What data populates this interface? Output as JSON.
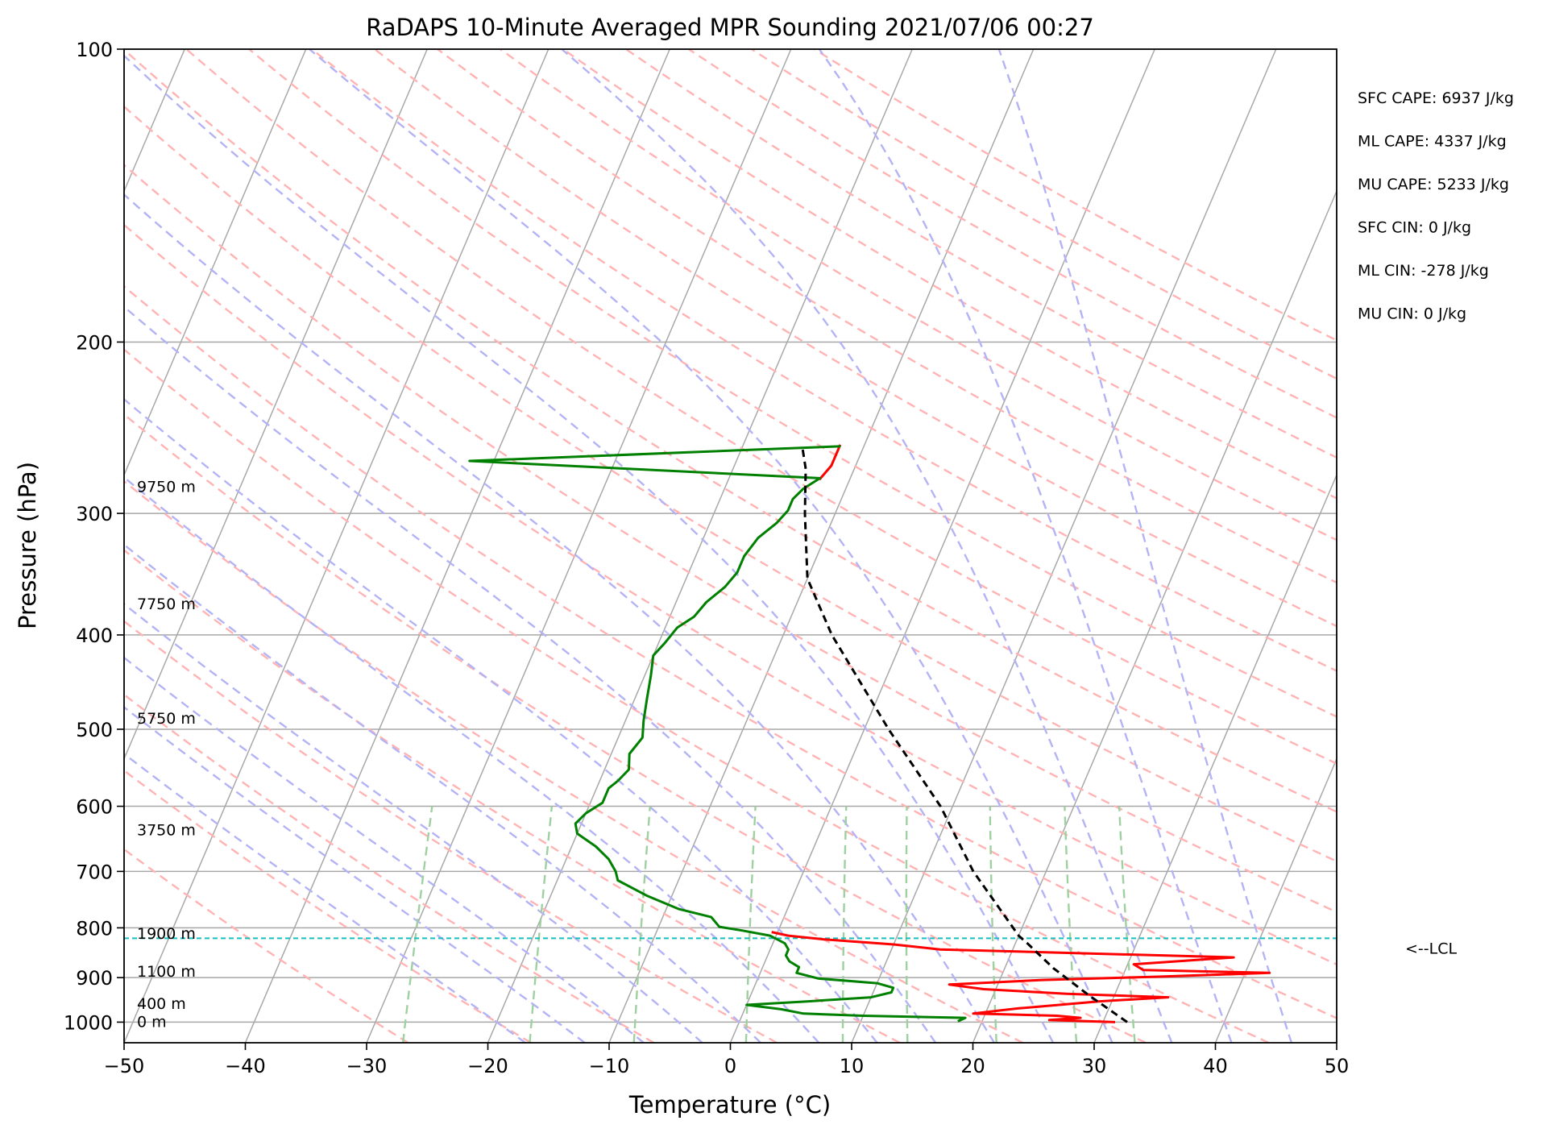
{
  "chart_data": {
    "type": "line",
    "title": "RaDAPS 10-Minute Averaged MPR Sounding 2021/07/06 00:27",
    "xlabel": "Temperature (°C)",
    "ylabel": "Pressure (hPa)",
    "xlim": [
      -50,
      50
    ],
    "ylim": [
      1050,
      100
    ],
    "y_scale": "log",
    "x_ticks": [
      -50,
      -40,
      -30,
      -20,
      -10,
      0,
      10,
      20,
      30,
      40,
      50
    ],
    "x_tick_labels": [
      "−50",
      "−40",
      "−30",
      "−20",
      "−10",
      "0",
      "10",
      "20",
      "30",
      "40",
      "50"
    ],
    "y_ticks": [
      100,
      200,
      300,
      400,
      500,
      600,
      700,
      800,
      900,
      1000
    ],
    "y_tick_labels": [
      "100",
      "200",
      "300",
      "400",
      "500",
      "600",
      "700",
      "800",
      "900",
      "1000"
    ],
    "grid": true,
    "colors": {
      "temperature": "#ff0000",
      "dewpoint": "#008000",
      "parcel": "#000000",
      "lcl": "#17bfbf",
      "isotherm": "#a8a8a8",
      "dry_adiabat": "#ffb3b3",
      "moist_adiabat": "#b3b3f5",
      "mixing_ratio": "#9fd09f"
    },
    "series": [
      {
        "key": "temperature",
        "points": [
          [
            31.0,
            1000
          ],
          [
            25.5,
            995
          ],
          [
            28.0,
            990
          ],
          [
            26.0,
            985
          ],
          [
            19.0,
            980
          ],
          [
            22.5,
            968
          ],
          [
            29.0,
            952
          ],
          [
            34.5,
            943
          ],
          [
            26.0,
            935
          ],
          [
            19.0,
            925
          ],
          [
            16.0,
            915
          ],
          [
            23.5,
            905
          ],
          [
            33.0,
            898
          ],
          [
            42.0,
            890
          ],
          [
            31.5,
            884
          ],
          [
            30.5,
            872
          ],
          [
            38.5,
            858
          ],
          [
            26.5,
            850
          ],
          [
            14.0,
            842
          ],
          [
            10.0,
            832
          ],
          [
            4.0,
            822
          ],
          [
            1.0,
            815
          ],
          [
            -0.5,
            808
          ]
        ]
      },
      {
        "key": "temperature",
        "points": [
          [
            -12.5,
            277
          ],
          [
            -12.0,
            268
          ],
          [
            -12.0,
            255
          ]
        ]
      },
      {
        "key": "dewpoint",
        "points": [
          [
            18.0,
            998
          ],
          [
            18.5,
            990
          ],
          [
            10.0,
            985
          ],
          [
            5.0,
            980
          ],
          [
            3.0,
            970
          ],
          [
            0.0,
            960
          ],
          [
            5.0,
            952
          ],
          [
            10.0,
            943
          ],
          [
            11.5,
            932
          ],
          [
            11.5,
            922
          ],
          [
            10.0,
            912
          ],
          [
            5.0,
            902
          ],
          [
            3.0,
            890
          ],
          [
            3.0,
            878
          ],
          [
            2.0,
            866
          ],
          [
            1.5,
            854
          ],
          [
            1.5,
            842
          ],
          [
            1.0,
            830
          ],
          [
            -0.5,
            815
          ],
          [
            -3.0,
            805
          ],
          [
            -5.0,
            798
          ],
          [
            -6.0,
            780
          ],
          [
            -9.0,
            765
          ],
          [
            -12.0,
            742
          ],
          [
            -15.0,
            715
          ],
          [
            -15.5,
            700
          ],
          [
            -16.5,
            680
          ],
          [
            -18.0,
            660
          ],
          [
            -20.0,
            640
          ],
          [
            -20.5,
            625
          ],
          [
            -20.0,
            610
          ],
          [
            -19.0,
            595
          ],
          [
            -19.0,
            575
          ],
          [
            -18.5,
            565
          ],
          [
            -18.0,
            550
          ],
          [
            -18.5,
            530
          ],
          [
            -18.0,
            510
          ],
          [
            -18.5,
            490
          ],
          [
            -19.0,
            465
          ],
          [
            -19.5,
            440
          ],
          [
            -20.0,
            420
          ],
          [
            -19.5,
            408
          ],
          [
            -19.0,
            393
          ],
          [
            -18.0,
            383
          ],
          [
            -17.5,
            370
          ],
          [
            -16.5,
            357
          ],
          [
            -16.0,
            345
          ],
          [
            -16.0,
            332
          ],
          [
            -15.5,
            318
          ],
          [
            -14.5,
            307
          ],
          [
            -14.0,
            298
          ],
          [
            -14.0,
            290
          ],
          [
            -13.5,
            283
          ],
          [
            -12.5,
            276
          ],
          [
            -42.0,
            265
          ],
          [
            -12.0,
            256
          ],
          [
            -15.5,
            257
          ]
        ]
      },
      {
        "key": "parcel",
        "points": [
          [
            32.0,
            1000
          ],
          [
            28.0,
            940
          ],
          [
            24.0,
            880
          ],
          [
            21.0,
            830
          ],
          [
            20.0,
            815
          ],
          [
            14.0,
            700
          ],
          [
            9.0,
            600
          ],
          [
            2.0,
            500
          ],
          [
            -6.0,
            400
          ],
          [
            -10.0,
            350
          ],
          [
            -12.5,
            300
          ],
          [
            -14.0,
            270
          ],
          [
            -15.0,
            257
          ]
        ]
      }
    ],
    "lcl_pressure": 820,
    "lcl_label": "<--LCL",
    "height_labels": [
      {
        "label": "0 m",
        "pressure": 1000
      },
      {
        "label": "400 m",
        "pressure": 958
      },
      {
        "label": "1100 m",
        "pressure": 888
      },
      {
        "label": "1900 m",
        "pressure": 812
      },
      {
        "label": "3750 m",
        "pressure": 635
      },
      {
        "label": "5750 m",
        "pressure": 488
      },
      {
        "label": "7750 m",
        "pressure": 372
      },
      {
        "label": "9750 m",
        "pressure": 282
      }
    ],
    "stats": [
      {
        "label": "SFC CAPE: 6937 J/kg"
      },
      {
        "label": "ML CAPE: 4337 J/kg"
      },
      {
        "label": "MU CAPE: 5233 J/kg"
      },
      {
        "label": "SFC CIN: 0 J/kg"
      },
      {
        "label": "ML CIN: -278 J/kg"
      },
      {
        "label": "MU CIN: 0 J/kg"
      }
    ]
  }
}
